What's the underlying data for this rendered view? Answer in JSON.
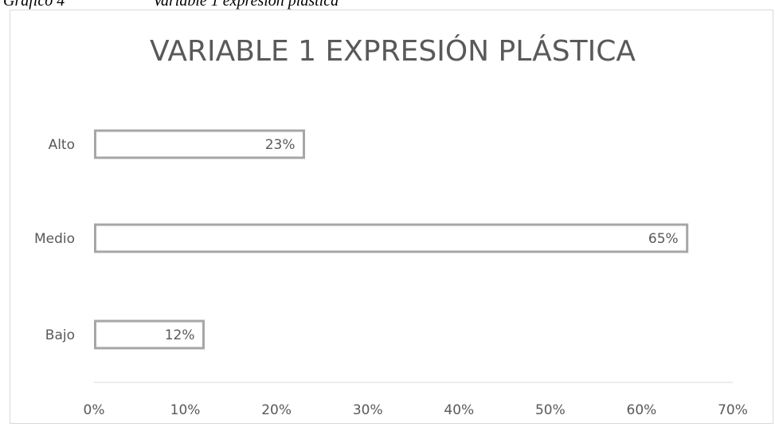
{
  "caption": {
    "label": "Gráfico 4",
    "title": "Variable 1 expresión plástica"
  },
  "chart_data": {
    "type": "bar",
    "orientation": "horizontal",
    "title": "VARIABLE 1 EXPRESIÓN PLÁSTICA",
    "categories": [
      "Alto",
      "Medio",
      "Bajo"
    ],
    "values": [
      0.23,
      0.65,
      0.12
    ],
    "data_labels": [
      "23%",
      "65%",
      "12%"
    ],
    "xlim": [
      0,
      0.7
    ],
    "x_ticks": [
      0,
      0.1,
      0.2,
      0.3,
      0.4,
      0.5,
      0.6,
      0.7
    ],
    "x_tick_labels": [
      "0%",
      "10%",
      "20%",
      "30%",
      "40%",
      "50%",
      "60%",
      "70%"
    ],
    "xlabel": "",
    "ylabel": "",
    "grid": false,
    "legend": "none",
    "colors": {
      "bar_fill": "#ffffff",
      "bar_border": "#a6a6a6",
      "axis_line": "#d9d9d9",
      "text": "#595959"
    }
  }
}
